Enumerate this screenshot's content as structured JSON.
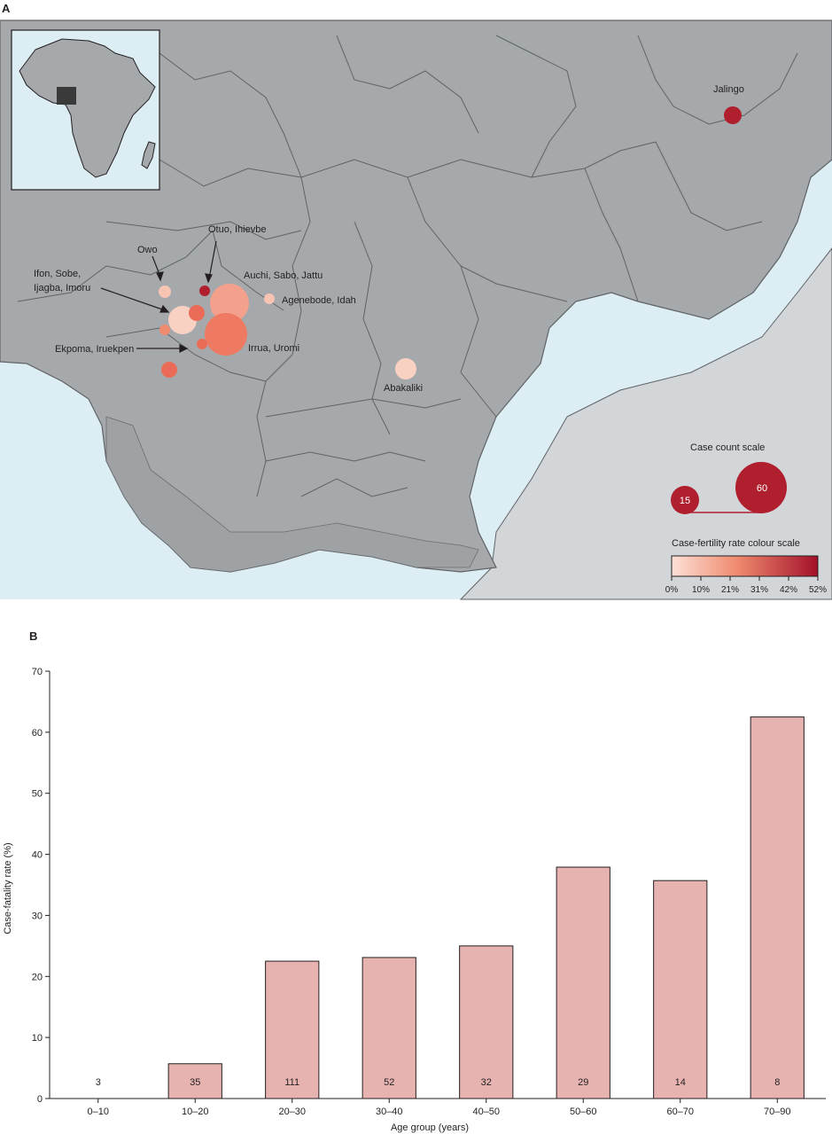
{
  "panel_a": {
    "label": "A",
    "colors": {
      "land": "#a6a9ab",
      "ocean": "#dcedf3",
      "inset_land": "#a6a9ab",
      "inset_ocean": "#dcedf3",
      "border": "#5f6366",
      "marker_dark": "#b01f2e"
    },
    "places": [
      {
        "label": "Jalingo",
        "value_cfr": 52
      },
      {
        "label": "Otuo, Ihievbe",
        "value_cfr": 52
      },
      {
        "label": "Owo",
        "value_cfr": 0
      },
      {
        "label": "Ifon, Sobe,",
        "value_cfr": 10
      },
      {
        "label": "Ijagba, Imoru",
        "value_cfr": 10
      },
      {
        "label": "Auchi, Sabo, Jattu",
        "value_cfr": 21
      },
      {
        "label": "Agenebode, Idah",
        "value_cfr": 0
      },
      {
        "label": "Ekpoma, Iruekpen",
        "value_cfr": 21
      },
      {
        "label": "Irrua, Uromi",
        "value_cfr": 21
      },
      {
        "label": "Abakaliki",
        "value_cfr": 0
      }
    ],
    "case_scale": {
      "title": "Case count scale",
      "small_label": "15",
      "large_label": "60"
    },
    "cfr_scale": {
      "title": "Case-fertility rate colour scale",
      "ticks": [
        "0%",
        "10%",
        "21%",
        "31%",
        "42%",
        "52%"
      ],
      "color_start": "#fde0d6",
      "color_mid": "#ef8a6e",
      "color_end": "#a3102a"
    }
  },
  "chart_data": {
    "type": "bar",
    "title": "B",
    "xlabel": "Age group (years)",
    "ylabel": "Case-fatality rate (%)",
    "ylim": [
      0,
      70
    ],
    "yticks": [
      0,
      10,
      20,
      30,
      40,
      50,
      60,
      70
    ],
    "categories": [
      "0–10",
      "10–20",
      "20–30",
      "30–40",
      "40–50",
      "50–60",
      "60–70",
      "70–90"
    ],
    "values": [
      0,
      5.7,
      22.5,
      23.1,
      25.0,
      37.9,
      35.7,
      62.5
    ],
    "bar_labels": [
      "3",
      "35",
      "111",
      "52",
      "32",
      "29",
      "14",
      "8"
    ],
    "bar_color": "#e6b3b1",
    "bar_edge": "#231f20"
  }
}
